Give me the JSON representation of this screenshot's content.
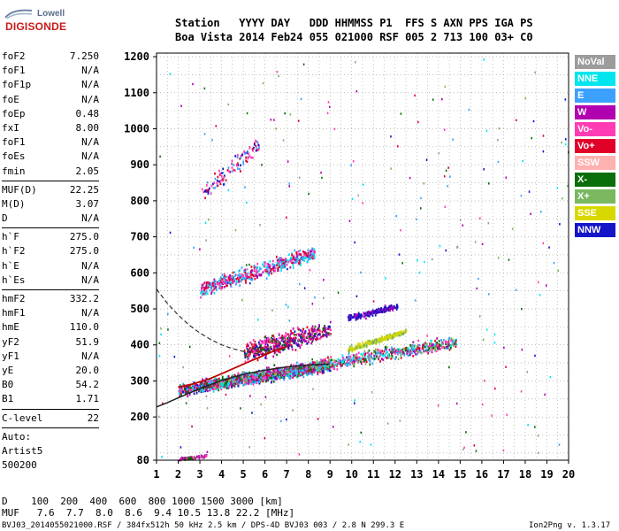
{
  "logo": {
    "brand": "Lowell",
    "name": "DIGISONDE"
  },
  "header": {
    "row1": "Station   YYYY DAY   DDD HHMMSS P1  FFS S AXN PPS IGA PS",
    "row2": "Boa Vista 2014 Feb24 055 021000 RSF 005 2 713 100 03+ C0"
  },
  "params": [
    {
      "label": "foF2",
      "value": "7.250"
    },
    {
      "label": "foF1",
      "value": "N/A"
    },
    {
      "label": "foF1p",
      "value": "N/A"
    },
    {
      "label": "foE",
      "value": "N/A"
    },
    {
      "label": "foEp",
      "value": "0.48"
    },
    {
      "label": "fxI",
      "value": "8.00"
    },
    {
      "label": "foF1",
      "value": "N/A"
    },
    {
      "label": "foEs",
      "value": "N/A"
    },
    {
      "label": "fmin",
      "value": "2.05"
    },
    {
      "sep": true
    },
    {
      "label": "MUF(D)",
      "value": "22.25"
    },
    {
      "label": "M(D)",
      "value": "3.07"
    },
    {
      "label": "D",
      "value": "N/A"
    },
    {
      "sep": true
    },
    {
      "label": "h`F",
      "value": "275.0"
    },
    {
      "label": "h`F2",
      "value": "275.0"
    },
    {
      "label": "h`E",
      "value": "N/A"
    },
    {
      "label": "h`Es",
      "value": "N/A"
    },
    {
      "sep": true
    },
    {
      "label": "hmF2",
      "value": "332.2"
    },
    {
      "label": "hmF1",
      "value": "N/A"
    },
    {
      "label": "hmE",
      "value": "110.0"
    },
    {
      "label": "yF2",
      "value": "51.9"
    },
    {
      "label": "yF1",
      "value": "N/A"
    },
    {
      "label": "yE",
      "value": "20.0"
    },
    {
      "label": "B0",
      "value": "54.2"
    },
    {
      "label": "B1",
      "value": "1.71"
    },
    {
      "sep": true
    },
    {
      "label": "C-level",
      "value": "22"
    },
    {
      "sep": true
    },
    {
      "label": "Auto:",
      "value": ""
    },
    {
      "label": "Artist5",
      "value": ""
    },
    {
      "label": "500200",
      "value": ""
    }
  ],
  "legend": [
    {
      "label": "NoVal",
      "color": "#9c9c9c"
    },
    {
      "label": "NNE",
      "color": "#00e5ee"
    },
    {
      "label": "E",
      "color": "#3ca0ff"
    },
    {
      "label": "W",
      "color": "#b000b0"
    },
    {
      "label": "Vo-",
      "color": "#ff3cb4"
    },
    {
      "label": "Vo+",
      "color": "#e00028"
    },
    {
      "label": "SSW",
      "color": "#ffb0b0"
    },
    {
      "label": "X-",
      "color": "#0a6e0a"
    },
    {
      "label": "X+",
      "color": "#7ab860"
    },
    {
      "label": "SSE",
      "color": "#d8d800"
    },
    {
      "label": "NNW",
      "color": "#1414c8"
    }
  ],
  "bottom": {
    "d_row": "D    100  200  400  600  800 1000 1500 3000 [km]",
    "muf_row": "MUF   7.6  7.7  8.0  8.6  9.4 10.5 13.8 22.2 [MHz]"
  },
  "footer": {
    "left": "BVJ03_2014055021000.RSF / 384fx512h 50 kHz 2.5 km / DPS-4D BVJ03 003 / 2.8 N 299.3 E",
    "right": "Ion2Png v. 1.3.17"
  },
  "chart_data": {
    "type": "scatter",
    "xlim": [
      1,
      20
    ],
    "ylim": [
      80,
      1210
    ],
    "x_ticks": [
      1,
      2,
      3,
      4,
      5,
      6,
      7,
      8,
      9,
      10,
      11,
      12,
      13,
      14,
      15,
      16,
      17,
      18,
      19,
      20
    ],
    "y_ticks": [
      80,
      200,
      300,
      400,
      500,
      600,
      700,
      800,
      900,
      1000,
      1100,
      1200
    ],
    "x_minor_step": 0.5,
    "y_minor_step": 50,
    "grid": true,
    "clusters": [
      {
        "name": "O-trace",
        "x0": 2.0,
        "x1": 9.0,
        "y0": 275,
        "y1": 345,
        "n": 900,
        "spread": 22,
        "colors": [
          "#e00028",
          "#ff3cb4",
          "#b000b0",
          "#0a6e0a",
          "#1414c8",
          "#3ca0ff",
          "#00e5ee"
        ]
      },
      {
        "name": "X-trace",
        "x0": 3.0,
        "x1": 14.8,
        "y0": 290,
        "y1": 410,
        "n": 1100,
        "spread": 24,
        "colors": [
          "#b000b0",
          "#3ca0ff",
          "#00e5ee",
          "#ff3cb4",
          "#e00028",
          "#0a6e0a",
          "#7ab860"
        ]
      },
      {
        "name": "2nd-hop",
        "x0": 3.0,
        "x1": 8.3,
        "y0": 555,
        "y1": 660,
        "n": 520,
        "spread": 30,
        "colors": [
          "#b000b0",
          "#ff3cb4",
          "#e00028",
          "#00e5ee",
          "#3ca0ff"
        ]
      },
      {
        "name": "3rd-hop",
        "x0": 3.0,
        "x1": 5.7,
        "y0": 820,
        "y1": 960,
        "n": 110,
        "spread": 35,
        "colors": [
          "#ff3cb4",
          "#e00028",
          "#1414c8",
          "#3ca0ff"
        ]
      },
      {
        "name": "spread-F",
        "x0": 5.0,
        "x1": 9.0,
        "y0": 380,
        "y1": 445,
        "n": 520,
        "spread": 38,
        "colors": [
          "#e00028",
          "#b000b0",
          "#ff3cb4",
          "#0a6e0a",
          "#1414c8"
        ]
      },
      {
        "name": "SSE-patch",
        "x0": 9.8,
        "x1": 12.5,
        "y0": 390,
        "y1": 440,
        "n": 260,
        "spread": 10,
        "colors": [
          "#d8d800",
          "#d8d800",
          "#7ab860"
        ]
      },
      {
        "name": "NNW-patch",
        "x0": 9.8,
        "x1": 12.1,
        "y0": 475,
        "y1": 510,
        "n": 190,
        "spread": 12,
        "colors": [
          "#1414c8",
          "#1414c8",
          "#b000b0"
        ]
      },
      {
        "name": "low",
        "x0": 2.0,
        "x1": 3.3,
        "y0": 85,
        "y1": 95,
        "n": 80,
        "spread": 6,
        "colors": [
          "#ff3cb4",
          "#0a6e0a",
          "#b000b0"
        ]
      }
    ],
    "dashed_curve": [
      [
        1.0,
        555
      ],
      [
        1.5,
        515
      ],
      [
        2.0,
        483
      ],
      [
        2.5,
        455
      ],
      [
        3.0,
        433
      ],
      [
        3.5,
        415
      ],
      [
        4.0,
        400
      ],
      [
        4.5,
        390
      ],
      [
        5.0,
        382
      ],
      [
        5.5,
        377
      ],
      [
        5.9,
        373
      ]
    ],
    "solid_curve": [
      [
        1.0,
        228
      ],
      [
        1.5,
        240
      ],
      [
        2.0,
        253
      ],
      [
        2.5,
        266
      ],
      [
        3.0,
        279
      ],
      [
        3.5,
        290
      ],
      [
        4.0,
        301
      ],
      [
        4.5,
        310
      ],
      [
        5.0,
        318
      ],
      [
        6.0,
        330
      ],
      [
        7.0,
        339
      ],
      [
        8.0,
        344
      ],
      [
        9.0,
        347
      ]
    ],
    "red_curve": [
      [
        2.0,
        283
      ],
      [
        2.7,
        292
      ],
      [
        3.4,
        305
      ],
      [
        4.0,
        320
      ],
      [
        4.6,
        336
      ],
      [
        5.2,
        352
      ],
      [
        5.8,
        367
      ],
      [
        6.4,
        383
      ],
      [
        7.0,
        395
      ]
    ]
  }
}
